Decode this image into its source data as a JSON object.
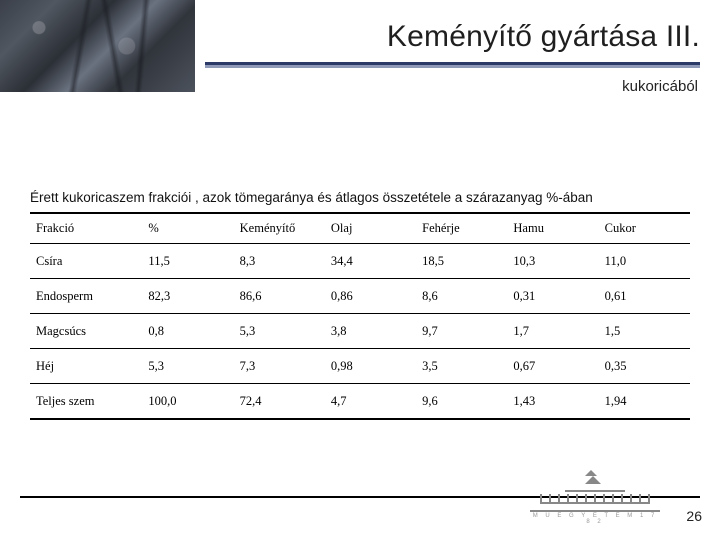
{
  "title": "Keményítő gyártása III.",
  "subtitle": "kukoricából",
  "caption": "Érett kukoricaszem frakciói , azok tömegaránya és átlagos összetétele a szárazanyag %-ában",
  "table": {
    "columns": [
      "Frakció",
      "%",
      "Keményítő",
      "Olaj",
      "Fehérje",
      "Hamu",
      "Cukor"
    ],
    "rows": [
      [
        "Csíra",
        "11,5",
        "8,3",
        "34,4",
        "18,5",
        "10,3",
        "11,0"
      ],
      [
        "Endosperm",
        "82,3",
        "86,6",
        "0,86",
        "8,6",
        "0,31",
        "0,61"
      ],
      [
        "Magcsúcs",
        "0,8",
        "5,3",
        "3,8",
        "9,7",
        "1,7",
        "1,5"
      ],
      [
        "Héj",
        "5,3",
        "7,3",
        "0,98",
        "3,5",
        "0,67",
        "0,35"
      ],
      [
        "Teljes szem",
        "100,0",
        "72,4",
        "4,7",
        "9,6",
        "1,43",
        "1,94"
      ]
    ]
  },
  "footer_logo_text": "M Ű E G Y E T E M   1 7 8 2",
  "page_number": "26",
  "colors": {
    "title_rule": "#2b3a66",
    "title_rule_shadow": "#8f99b8",
    "text": "#1f1f1f",
    "border": "#000000",
    "logo": "#888888"
  }
}
